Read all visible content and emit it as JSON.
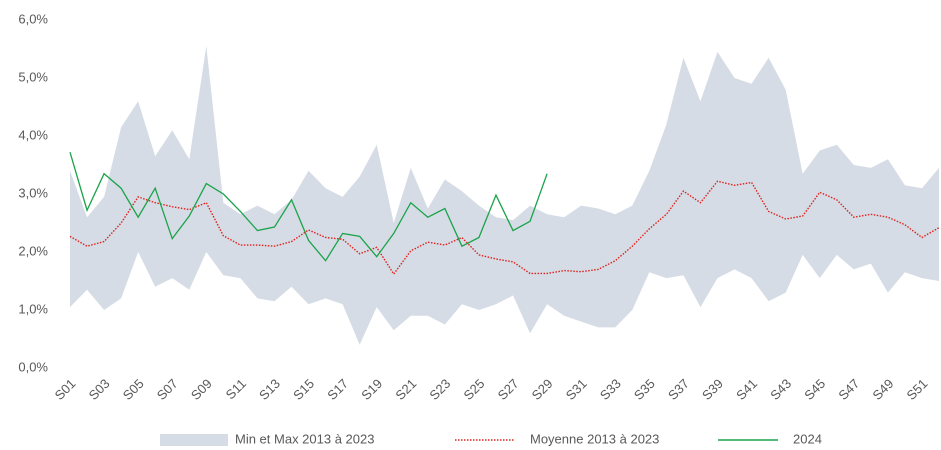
{
  "chart_data": {
    "type": "line",
    "categories": [
      "S01",
      null,
      "S03",
      null,
      "S05",
      null,
      "S07",
      null,
      "S09",
      null,
      "S11",
      null,
      "S13",
      null,
      "S15",
      null,
      "S17",
      null,
      "S19",
      null,
      "S21",
      null,
      "S23",
      null,
      "S25",
      null,
      "S27",
      null,
      "S29",
      null,
      "S31",
      null,
      "S33",
      null,
      "S35",
      null,
      "S37",
      null,
      "S39",
      null,
      "S41",
      null,
      "S43",
      null,
      "S45",
      null,
      "S47",
      null,
      "S49",
      null,
      "S51",
      null
    ],
    "ylim": [
      0,
      6
    ],
    "yticks": [
      {
        "value": 0,
        "label": "0,0%"
      },
      {
        "value": 1,
        "label": "1,0%"
      },
      {
        "value": 2,
        "label": "2,0%"
      },
      {
        "value": 3,
        "label": "3,0%"
      },
      {
        "value": 4,
        "label": "4,0%"
      },
      {
        "value": 5,
        "label": "5,0%"
      },
      {
        "value": 6,
        "label": "6,0%"
      }
    ],
    "grid": false,
    "legend": "bottom",
    "series": [
      {
        "name": "Min et Max 2013 à 2023",
        "color": "#d6dce5",
        "style": "band",
        "low": [
          1.05,
          1.35,
          1.0,
          1.2,
          2.0,
          1.4,
          1.55,
          1.35,
          2.0,
          1.6,
          1.55,
          1.2,
          1.15,
          1.4,
          1.1,
          1.2,
          1.1,
          0.4,
          1.05,
          0.65,
          0.9,
          0.9,
          0.75,
          1.1,
          1.0,
          1.1,
          1.25,
          0.6,
          1.1,
          0.9,
          0.8,
          0.7,
          0.7,
          1.0,
          1.65,
          1.55,
          1.6,
          1.05,
          1.55,
          1.7,
          1.55,
          1.15,
          1.3,
          1.95,
          1.55,
          1.95,
          1.7,
          1.8,
          1.3,
          1.65,
          1.55,
          1.5
        ],
        "high": [
          3.4,
          2.6,
          2.95,
          4.15,
          4.6,
          3.65,
          4.1,
          3.6,
          5.55,
          2.85,
          2.65,
          2.8,
          2.65,
          2.9,
          3.4,
          3.1,
          2.95,
          3.3,
          3.85,
          2.5,
          3.45,
          2.75,
          3.25,
          3.05,
          2.8,
          2.6,
          2.55,
          2.8,
          2.65,
          2.6,
          2.8,
          2.75,
          2.65,
          2.8,
          3.4,
          4.2,
          5.35,
          4.6,
          5.45,
          5.0,
          4.9,
          5.35,
          4.8,
          3.35,
          3.75,
          3.85,
          3.5,
          3.45,
          3.6,
          3.15,
          3.1,
          3.45
        ]
      },
      {
        "name": "Moyenne 2013 à 2023",
        "color": "#e0201b",
        "style": "dotted",
        "values": [
          2.27,
          2.1,
          2.18,
          2.5,
          2.95,
          2.85,
          2.78,
          2.73,
          2.85,
          2.28,
          2.12,
          2.12,
          2.1,
          2.18,
          2.38,
          2.25,
          2.22,
          1.97,
          2.08,
          1.62,
          2.02,
          2.17,
          2.12,
          2.25,
          1.95,
          1.88,
          1.83,
          1.63,
          1.63,
          1.68,
          1.66,
          1.7,
          1.85,
          2.1,
          2.4,
          2.65,
          3.05,
          2.85,
          3.22,
          3.15,
          3.2,
          2.7,
          2.57,
          2.62,
          3.03,
          2.9,
          2.6,
          2.65,
          2.6,
          2.47,
          2.25,
          2.42
        ]
      },
      {
        "name": "2024",
        "color": "#1aa34a",
        "style": "solid",
        "values": [
          3.72,
          2.72,
          3.35,
          3.1,
          2.6,
          3.1,
          2.23,
          2.62,
          3.18,
          3.0,
          2.7,
          2.37,
          2.43,
          2.9,
          2.2,
          1.85,
          2.32,
          2.27,
          1.92,
          2.32,
          2.85,
          2.6,
          2.75,
          2.1,
          2.25,
          2.98,
          2.37,
          2.53,
          3.35,
          null,
          null,
          null,
          null,
          null,
          null,
          null,
          null,
          null,
          null,
          null,
          null,
          null,
          null,
          null,
          null,
          null,
          null,
          null,
          null,
          null,
          null,
          null
        ]
      }
    ]
  }
}
